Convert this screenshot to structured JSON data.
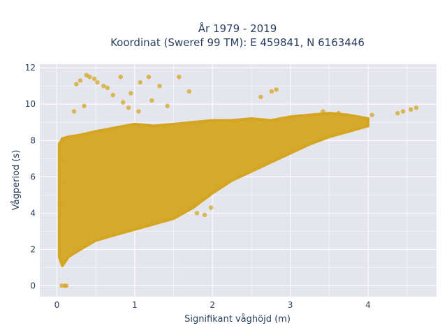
{
  "chart_data": {
    "type": "scatter",
    "title": "År 1979 - 2019",
    "subtitle": "Koordinat (Sweref 99 TM): E 459841, N 6163446",
    "xlabel": "Signifikant våghöjd (m)",
    "ylabel": "Vågperiod (s)",
    "xlim": [
      -0.22,
      4.88
    ],
    "ylim": [
      -0.6,
      12.2
    ],
    "xticks": [
      "0",
      "1",
      "2",
      "3",
      "4"
    ],
    "yticks": [
      "0",
      "2",
      "4",
      "6",
      "8",
      "10",
      "12"
    ],
    "grid": true,
    "point_color": "#d4a520",
    "background": "#e5e5ee",
    "density_band": {
      "x": [
        0.03,
        0.07,
        0.15,
        0.3,
        0.5,
        0.75,
        1.0,
        1.25,
        1.5,
        1.75,
        2.0,
        2.25,
        2.5,
        2.75,
        3.0,
        3.25,
        3.5,
        3.75,
        4.0
      ],
      "lower": [
        1.6,
        1.1,
        1.6,
        2.0,
        2.5,
        2.8,
        3.1,
        3.4,
        3.7,
        4.3,
        5.1,
        5.8,
        6.3,
        6.8,
        7.3,
        7.8,
        8.2,
        8.5,
        8.8
      ],
      "upper": [
        7.8,
        8.1,
        8.2,
        8.3,
        8.5,
        8.7,
        8.9,
        8.8,
        8.9,
        9.0,
        9.1,
        9.1,
        9.2,
        9.1,
        9.3,
        9.4,
        9.5,
        9.4,
        9.2
      ]
    },
    "outliers": [
      {
        "x": 0.06,
        "y": 0.0
      },
      {
        "x": 0.1,
        "y": 0.0
      },
      {
        "x": 0.12,
        "y": 0.0
      },
      {
        "x": 0.25,
        "y": 11.1
      },
      {
        "x": 0.3,
        "y": 11.3
      },
      {
        "x": 0.38,
        "y": 11.6
      },
      {
        "x": 0.42,
        "y": 11.5
      },
      {
        "x": 0.48,
        "y": 11.4
      },
      {
        "x": 0.52,
        "y": 11.2
      },
      {
        "x": 0.6,
        "y": 11.0
      },
      {
        "x": 0.82,
        "y": 11.5
      },
      {
        "x": 0.95,
        "y": 10.6
      },
      {
        "x": 1.07,
        "y": 11.2
      },
      {
        "x": 1.18,
        "y": 11.5
      },
      {
        "x": 1.32,
        "y": 11.0
      },
      {
        "x": 1.57,
        "y": 11.5
      },
      {
        "x": 1.7,
        "y": 10.7
      },
      {
        "x": 0.85,
        "y": 10.1
      },
      {
        "x": 0.72,
        "y": 10.5
      },
      {
        "x": 0.65,
        "y": 10.9
      },
      {
        "x": 0.22,
        "y": 9.6
      },
      {
        "x": 0.35,
        "y": 9.9
      },
      {
        "x": 0.92,
        "y": 9.8
      },
      {
        "x": 1.05,
        "y": 9.6
      },
      {
        "x": 1.22,
        "y": 10.2
      },
      {
        "x": 1.42,
        "y": 9.9
      },
      {
        "x": 2.76,
        "y": 10.7
      },
      {
        "x": 2.82,
        "y": 10.8
      },
      {
        "x": 2.62,
        "y": 10.4
      },
      {
        "x": 3.42,
        "y": 9.6
      },
      {
        "x": 3.62,
        "y": 9.5
      },
      {
        "x": 4.05,
        "y": 9.4
      },
      {
        "x": 4.38,
        "y": 9.5
      },
      {
        "x": 4.45,
        "y": 9.6
      },
      {
        "x": 4.55,
        "y": 9.7
      },
      {
        "x": 4.62,
        "y": 9.8
      },
      {
        "x": 0.08,
        "y": 6.9
      },
      {
        "x": 0.1,
        "y": 5.7
      },
      {
        "x": 0.05,
        "y": 4.5
      },
      {
        "x": 1.9,
        "y": 3.9
      },
      {
        "x": 1.98,
        "y": 4.3
      },
      {
        "x": 1.8,
        "y": 4.0
      }
    ]
  }
}
